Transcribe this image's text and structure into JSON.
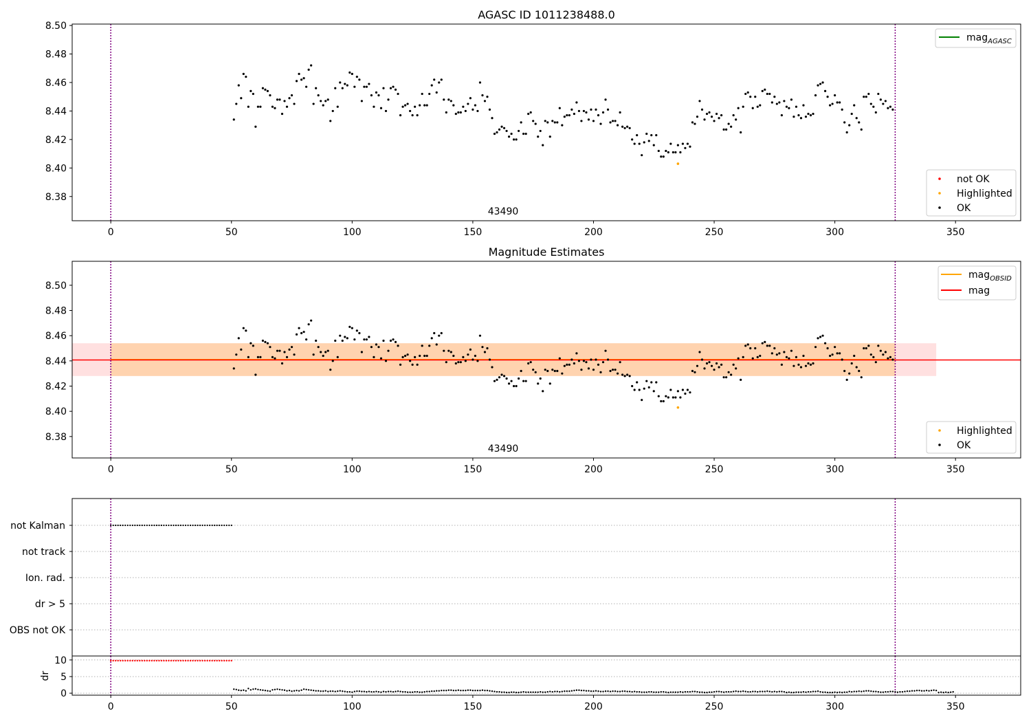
{
  "chart_data": [
    {
      "type": "scatter",
      "title": "AGASC ID 1011238488.0",
      "obsid_label": "43490",
      "xlim": [
        -16,
        377
      ],
      "ylim": [
        8.363,
        8.501
      ],
      "xticks": [
        0,
        50,
        100,
        150,
        200,
        250,
        300,
        350
      ],
      "yticks": [
        8.38,
        8.4,
        8.42,
        8.44,
        8.46,
        8.48,
        8.5
      ],
      "ytick_labels": [
        "8.38",
        "8.40",
        "8.42",
        "8.44",
        "8.46",
        "8.48",
        "8.50"
      ],
      "vlines": [
        0,
        325
      ],
      "vline_color": "#800080",
      "legend_lines": [
        {
          "label": "mag",
          "sub": "AGASC",
          "color": "#008000"
        }
      ],
      "legend_points": [
        {
          "label": "not OK",
          "color": "#ff0000"
        },
        {
          "label": "Highlighted",
          "color": "#ffa500"
        },
        {
          "label": "OK",
          "color": "#000000"
        }
      ],
      "highlighted": [
        [
          235,
          8.403
        ]
      ],
      "ok_series": {
        "x_start": 51,
        "x_step": 1,
        "y": [
          8.434,
          8.445,
          8.458,
          8.449,
          8.466,
          8.464,
          8.443,
          8.454,
          8.452,
          8.429,
          8.443,
          8.443,
          8.456,
          8.455,
          8.454,
          8.451,
          8.443,
          8.442,
          8.448,
          8.448,
          8.438,
          8.447,
          8.443,
          8.449,
          8.451,
          8.445,
          8.461,
          8.466,
          8.462,
          8.463,
          8.457,
          8.469,
          8.472,
          8.445,
          8.456,
          8.451,
          8.447,
          8.444,
          8.447,
          8.448,
          8.433,
          8.44,
          8.456,
          8.443,
          8.46,
          8.456,
          8.459,
          8.458,
          8.467,
          8.466,
          8.457,
          8.464,
          8.462,
          8.447,
          8.457,
          8.457,
          8.459,
          8.451,
          8.443,
          8.453,
          8.451,
          8.442,
          8.456,
          8.44,
          8.448,
          8.456,
          8.457,
          8.455,
          8.452,
          8.437,
          8.443,
          8.444,
          8.445,
          8.44,
          8.437,
          8.443,
          8.437,
          8.444,
          8.452,
          8.444,
          8.444,
          8.452,
          8.458,
          8.462,
          8.453,
          8.46,
          8.462,
          8.448,
          8.439,
          8.448,
          8.447,
          8.444,
          8.438,
          8.439,
          8.439,
          8.443,
          8.44,
          8.445,
          8.449,
          8.441,
          8.444,
          8.44,
          8.46,
          8.451,
          8.447,
          8.45,
          8.441,
          8.435,
          8.424,
          8.425,
          8.427,
          8.429,
          8.428,
          8.426,
          8.422,
          8.424,
          8.42,
          8.42,
          8.426,
          8.432,
          8.424,
          8.424,
          8.438,
          8.439,
          8.433,
          8.431,
          8.422,
          8.426,
          8.416,
          8.433,
          8.432,
          8.422,
          8.433,
          8.432,
          8.432,
          8.442,
          8.43,
          8.436,
          8.437,
          8.437,
          8.441,
          8.438,
          8.446,
          8.44,
          8.433,
          8.44,
          8.439,
          8.434,
          8.441,
          8.433,
          8.441,
          8.437,
          8.431,
          8.439,
          8.448,
          8.441,
          8.432,
          8.433,
          8.433,
          8.43,
          8.439,
          8.429,
          8.428,
          8.429,
          8.428,
          8.42,
          8.417,
          8.423,
          8.417,
          8.409,
          8.418,
          8.424,
          8.419,
          8.423,
          8.416,
          8.423,
          8.412,
          8.408,
          8.408,
          8.412,
          8.411,
          8.417,
          8.411,
          8.411,
          8.416,
          8.411,
          8.417,
          8.414,
          8.417,
          8.415,
          8.432,
          8.431,
          8.436,
          8.447,
          8.441,
          8.434,
          8.438,
          8.439,
          8.436,
          8.433,
          8.438,
          8.435,
          8.437,
          8.427,
          8.427,
          8.431,
          8.429,
          8.437,
          8.434,
          8.442,
          8.425,
          8.443,
          8.452,
          8.453,
          8.45,
          8.442,
          8.45,
          8.443,
          8.444,
          8.454,
          8.455,
          8.452,
          8.452,
          8.446,
          8.45,
          8.445,
          8.446,
          8.437,
          8.447,
          8.443,
          8.442,
          8.448,
          8.436,
          8.443,
          8.437,
          8.435,
          8.444,
          8.436,
          8.438,
          8.437,
          8.438,
          8.451,
          8.458,
          8.459,
          8.46,
          8.454,
          8.45,
          8.444,
          8.445,
          8.451,
          8.446,
          8.446,
          8.441,
          8.432,
          8.425,
          8.43,
          8.438,
          8.444,
          8.435,
          8.432,
          8.427,
          8.45,
          8.45,
          8.452,
          8.445,
          8.443,
          8.439,
          8.452,
          8.448,
          8.445,
          8.447,
          8.442,
          8.443,
          8.441
        ]
      }
    },
    {
      "type": "scatter",
      "title": "Magnitude Estimates",
      "obsid_label": "43490",
      "xlim": [
        -16,
        377
      ],
      "ylim": [
        8.363,
        8.519
      ],
      "xticks": [
        0,
        50,
        100,
        150,
        200,
        250,
        300,
        350
      ],
      "yticks": [
        8.38,
        8.4,
        8.42,
        8.44,
        8.46,
        8.48,
        8.5
      ],
      "ytick_labels": [
        "8.38",
        "8.40",
        "8.42",
        "8.44",
        "8.46",
        "8.48",
        "8.50"
      ],
      "vlines": [
        0,
        325
      ],
      "vline_color": "#800080",
      "mag": 8.441,
      "mag_band": [
        8.428,
        8.454
      ],
      "mag_obsid": 8.441,
      "mag_obsid_band": [
        8.428,
        8.454
      ],
      "band_x_end": 342,
      "obsid_x_range": [
        0,
        325
      ],
      "legend_lines": [
        {
          "label": "mag",
          "sub": "OBSID",
          "color": "#ffa500"
        },
        {
          "label": "mag",
          "sub": "",
          "color": "#ff0000"
        }
      ],
      "legend_points": [
        {
          "label": "Highlighted",
          "color": "#ffa500"
        },
        {
          "label": "OK",
          "color": "#000000"
        }
      ],
      "highlighted": [
        [
          235,
          8.403
        ]
      ]
    },
    {
      "type": "scatter",
      "title": "",
      "flag_categories": [
        "not Kalman",
        "not track",
        "Ion. rad.",
        "dr > 5",
        "OBS not OK"
      ],
      "flag_points": {
        "category": "not Kalman",
        "x_range": [
          0,
          50
        ],
        "step": 1
      },
      "xlim": [
        -16,
        377
      ],
      "xticks": [
        0,
        50,
        100,
        150,
        200,
        250,
        300,
        350
      ],
      "vlines": [
        0,
        325
      ],
      "vline_color": "#800080"
    },
    {
      "type": "scatter",
      "ylabel": "dr",
      "ylim": [
        -0.6,
        11.2
      ],
      "yticks": [
        0,
        5,
        10
      ],
      "ytick_labels": [
        "0",
        "5",
        "10"
      ],
      "xlim": [
        -16,
        377
      ],
      "xticks": [
        0,
        50,
        100,
        150,
        200,
        250,
        300,
        350
      ],
      "vlines": [
        0,
        325
      ],
      "vline_color": "#800080",
      "red_points": {
        "x_range": [
          0,
          50
        ],
        "y": 9.8
      },
      "dr_series_note": "",
      "dr_x_start": 51,
      "dr_y": [
        1.2,
        1.1,
        0.9,
        0.8,
        0.9,
        0.7,
        1.4,
        1.0,
        1.2,
        1.3,
        1.1,
        1.0,
        0.9,
        0.8,
        0.7,
        0.6,
        1.0,
        1.1,
        1.2,
        1.1,
        1.0,
        0.9,
        0.7,
        0.8,
        0.6,
        0.7,
        0.8,
        0.7,
        0.9,
        1.2,
        1.1,
        1.0,
        0.9,
        0.8,
        0.7,
        0.7,
        0.6,
        0.6,
        0.7,
        0.5,
        0.6,
        0.6,
        0.5,
        0.6,
        0.7,
        0.6,
        0.5,
        0.4,
        0.4,
        0.3,
        0.5,
        0.6,
        0.6,
        0.5,
        0.5,
        0.4,
        0.5,
        0.4,
        0.4,
        0.5,
        0.4,
        0.3,
        0.5,
        0.4,
        0.5,
        0.5,
        0.4,
        0.5,
        0.6,
        0.5,
        0.4,
        0.4,
        0.3,
        0.3,
        0.3,
        0.4,
        0.4,
        0.3,
        0.3,
        0.4,
        0.5,
        0.5,
        0.6,
        0.6,
        0.7,
        0.7,
        0.8,
        0.8,
        0.8,
        0.9,
        0.9,
        0.8,
        0.8,
        0.9,
        0.8,
        0.8,
        0.8,
        0.9,
        0.9,
        0.8,
        0.8,
        0.8,
        0.8,
        0.9,
        0.8,
        0.8,
        0.7,
        0.6,
        0.5,
        0.4,
        0.4,
        0.3,
        0.3,
        0.2,
        0.2,
        0.3,
        0.3,
        0.2,
        0.2,
        0.3,
        0.4,
        0.3,
        0.3,
        0.3,
        0.3,
        0.3,
        0.3,
        0.4,
        0.3,
        0.3,
        0.4,
        0.5,
        0.4,
        0.5,
        0.5,
        0.4,
        0.5,
        0.6,
        0.6,
        0.6,
        0.7,
        0.8,
        0.9,
        0.9,
        0.8,
        0.8,
        0.7,
        0.7,
        0.6,
        0.6,
        0.7,
        0.6,
        0.5,
        0.5,
        0.6,
        0.6,
        0.5,
        0.6,
        0.6,
        0.5,
        0.5,
        0.6,
        0.6,
        0.5,
        0.5,
        0.4,
        0.5,
        0.4,
        0.4,
        0.3,
        0.3,
        0.3,
        0.4,
        0.4,
        0.3,
        0.3,
        0.3,
        0.4,
        0.4,
        0.3,
        0.2,
        0.3,
        0.3,
        0.3,
        0.3,
        0.4,
        0.3,
        0.4,
        0.4,
        0.4,
        0.5,
        0.5,
        0.4,
        0.3,
        0.3,
        0.2,
        0.2,
        0.3,
        0.3,
        0.4,
        0.5,
        0.5,
        0.4,
        0.3,
        0.4,
        0.4,
        0.4,
        0.5,
        0.6,
        0.5,
        0.5,
        0.6,
        0.5,
        0.4,
        0.4,
        0.5,
        0.5,
        0.4,
        0.5,
        0.5,
        0.5,
        0.6,
        0.5,
        0.4,
        0.5,
        0.4,
        0.5,
        0.5,
        0.4,
        0.2,
        0.3,
        0.2,
        0.2,
        0.3,
        0.3,
        0.3,
        0.4,
        0.3,
        0.4,
        0.4,
        0.5,
        0.5,
        0.6,
        0.4,
        0.3,
        0.3,
        0.2,
        0.2,
        0.2,
        0.3,
        0.2,
        0.3,
        0.2,
        0.3,
        0.3,
        0.5,
        0.4,
        0.5,
        0.5,
        0.6,
        0.5,
        0.6,
        0.7,
        0.7,
        0.6,
        0.5,
        0.5,
        0.4,
        0.3,
        0.3,
        0.4,
        0.4,
        0.5,
        0.5,
        0.4,
        0.3,
        0.4,
        0.4,
        0.5,
        0.6,
        0.6,
        0.7,
        0.7,
        0.8,
        0.8,
        0.7,
        0.7,
        0.8,
        0.7,
        0.8,
        0.9,
        0.8,
        0.2,
        0.3,
        0.2,
        0.3,
        0.2,
        0.3,
        0.4
      ]
    }
  ]
}
